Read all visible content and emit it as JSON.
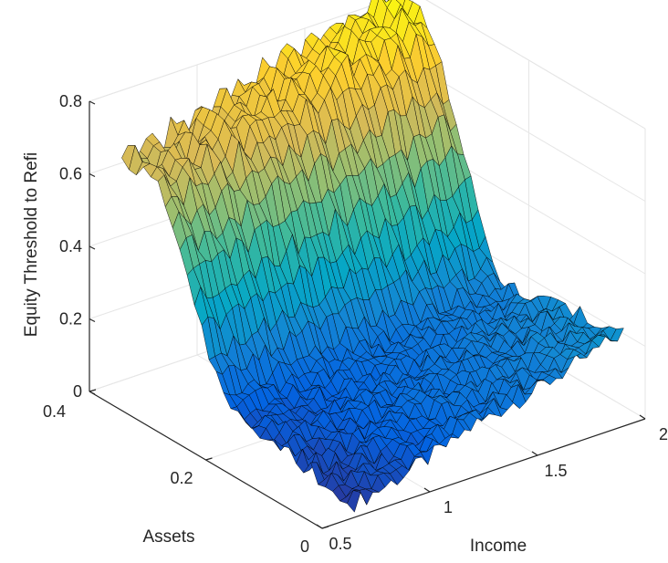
{
  "chart_data": {
    "type": "surface",
    "title": "",
    "xlabel": "Income",
    "ylabel": "Assets",
    "zlabel": "Equity Threshold to Refi",
    "xlim": [
      0.5,
      2
    ],
    "ylim": [
      0,
      0.4
    ],
    "zlim": [
      0,
      0.8
    ],
    "x_ticks": [
      "0.5",
      "1",
      "1.5",
      "2"
    ],
    "x_tick_values": [
      0.5,
      1,
      1.5,
      2
    ],
    "y_ticks": [
      "0",
      "0.2",
      "0.4"
    ],
    "y_tick_values": [
      0,
      0.2,
      0.4
    ],
    "z_ticks": [
      "0",
      "0.2",
      "0.4",
      "0.6",
      "0.8"
    ],
    "z_tick_values": [
      0,
      0.2,
      0.4,
      0.6,
      0.8
    ],
    "grid": true,
    "colormap": "parula",
    "colormap_stops": [
      "#352a87",
      "#0363e1",
      "#1485d4",
      "#06a7c6",
      "#38b99e",
      "#92bf73",
      "#d9ba56",
      "#fcce2e",
      "#f9fb0e"
    ],
    "surface": {
      "x_range": [
        0.65,
        1.9
      ],
      "y_range": [
        0.0,
        0.4
      ],
      "z_summary": {
        "high_assets_low_income": 0.6,
        "high_assets_high_income": 0.82,
        "low_assets_low_income": 0.02,
        "low_assets_high_income": 0.25,
        "mid_plateau": 0.2
      }
    }
  },
  "colors": {
    "axis": "#262626",
    "grid": "#e6e6e6",
    "edge": "#000000"
  }
}
